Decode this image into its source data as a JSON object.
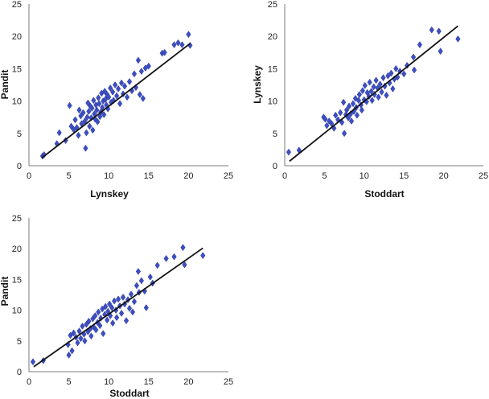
{
  "chart_data": [
    {
      "type": "scatter",
      "title": "",
      "xlabel": "Lynskey",
      "ylabel": "Pandit",
      "xlim": [
        0,
        25
      ],
      "ylim": [
        0,
        25
      ],
      "xticks": [
        "0",
        "5",
        "10",
        "15",
        "20",
        "25"
      ],
      "yticks": [
        "0",
        "5",
        "10",
        "15",
        "20",
        "25"
      ],
      "marker": "diamond",
      "point_color": "#3d4fc4",
      "line_color": "#111111",
      "trendline": {
        "x": [
          1.6,
          20.2
        ],
        "y": [
          1.2,
          18.9
        ]
      },
      "points": [
        [
          1.7,
          1.5
        ],
        [
          1.9,
          1.7
        ],
        [
          3.5,
          3.4
        ],
        [
          3.8,
          5.1
        ],
        [
          4.6,
          3.9
        ],
        [
          5.1,
          9.3
        ],
        [
          5.3,
          6.1
        ],
        [
          5.6,
          5.6
        ],
        [
          5.8,
          7.1
        ],
        [
          6.0,
          5.9
        ],
        [
          6.2,
          4.7
        ],
        [
          6.3,
          8.6
        ],
        [
          6.5,
          7.7
        ],
        [
          6.6,
          6.5
        ],
        [
          6.8,
          8.2
        ],
        [
          7.0,
          6.9
        ],
        [
          7.1,
          2.7
        ],
        [
          7.2,
          5.1
        ],
        [
          7.3,
          7.5
        ],
        [
          7.4,
          9.7
        ],
        [
          7.5,
          8.4
        ],
        [
          7.6,
          6.1
        ],
        [
          7.7,
          9.2
        ],
        [
          7.8,
          7.4
        ],
        [
          7.9,
          8.9
        ],
        [
          8.0,
          5.5
        ],
        [
          8.1,
          10.1
        ],
        [
          8.2,
          8.0
        ],
        [
          8.3,
          7.2
        ],
        [
          8.4,
          9.4
        ],
        [
          8.5,
          8.6
        ],
        [
          8.6,
          6.8
        ],
        [
          8.7,
          10.5
        ],
        [
          8.8,
          9.6
        ],
        [
          8.9,
          7.6
        ],
        [
          9.0,
          8.3
        ],
        [
          9.1,
          11.2
        ],
        [
          9.2,
          9.0
        ],
        [
          9.3,
          10.0
        ],
        [
          9.4,
          7.9
        ],
        [
          9.5,
          11.5
        ],
        [
          9.6,
          10.3
        ],
        [
          9.7,
          9.4
        ],
        [
          9.8,
          11.0
        ],
        [
          9.9,
          8.8
        ],
        [
          10.0,
          10.6
        ],
        [
          10.2,
          12.0
        ],
        [
          10.3,
          9.8
        ],
        [
          10.5,
          11.4
        ],
        [
          10.6,
          10.1
        ],
        [
          10.8,
          12.5
        ],
        [
          11.0,
          10.8
        ],
        [
          11.2,
          11.9
        ],
        [
          11.4,
          9.6
        ],
        [
          11.6,
          12.8
        ],
        [
          11.8,
          11.1
        ],
        [
          12.0,
          12.3
        ],
        [
          12.3,
          10.6
        ],
        [
          12.6,
          13.0
        ],
        [
          12.9,
          11.6
        ],
        [
          13.2,
          14.2
        ],
        [
          13.4,
          12.1
        ],
        [
          13.7,
          16.3
        ],
        [
          13.9,
          11.0
        ],
        [
          14.1,
          14.6
        ],
        [
          14.3,
          10.4
        ],
        [
          14.6,
          15.1
        ],
        [
          15.0,
          15.4
        ],
        [
          16.7,
          17.4
        ],
        [
          17.0,
          17.5
        ],
        [
          18.2,
          18.7
        ],
        [
          18.7,
          19.0
        ],
        [
          19.2,
          18.7
        ],
        [
          20.0,
          20.3
        ],
        [
          20.2,
          18.6
        ]
      ]
    },
    {
      "type": "scatter",
      "title": "",
      "xlabel": "Stoddart",
      "ylabel": "Lynskey",
      "xlim": [
        0,
        25
      ],
      "ylim": [
        0,
        25
      ],
      "xticks": [
        "0",
        "5",
        "10",
        "15",
        "20",
        "25"
      ],
      "yticks": [
        "0",
        "5",
        "10",
        "15",
        "20",
        "25"
      ],
      "marker": "diamond",
      "point_color": "#3d4fc4",
      "line_color": "#111111",
      "trendline": {
        "x": [
          0.6,
          21.8
        ],
        "y": [
          0.7,
          21.6
        ]
      },
      "points": [
        [
          0.5,
          2.1
        ],
        [
          1.8,
          2.4
        ],
        [
          4.9,
          7.5
        ],
        [
          5.1,
          7.2
        ],
        [
          5.3,
          6.2
        ],
        [
          5.6,
          6.9
        ],
        [
          5.9,
          6.5
        ],
        [
          6.2,
          5.8
        ],
        [
          6.4,
          7.8
        ],
        [
          6.7,
          7.1
        ],
        [
          7.0,
          8.2
        ],
        [
          7.2,
          6.7
        ],
        [
          7.4,
          9.8
        ],
        [
          7.5,
          5.0
        ],
        [
          7.7,
          7.9
        ],
        [
          7.8,
          8.6
        ],
        [
          8.0,
          7.4
        ],
        [
          8.1,
          9.2
        ],
        [
          8.3,
          8.0
        ],
        [
          8.4,
          6.9
        ],
        [
          8.6,
          9.6
        ],
        [
          8.7,
          8.4
        ],
        [
          8.9,
          10.4
        ],
        [
          9.0,
          9.0
        ],
        [
          9.1,
          7.8
        ],
        [
          9.3,
          10.1
        ],
        [
          9.4,
          11.0
        ],
        [
          9.6,
          9.4
        ],
        [
          9.7,
          8.6
        ],
        [
          9.8,
          11.6
        ],
        [
          10.0,
          10.2
        ],
        [
          10.1,
          12.4
        ],
        [
          10.3,
          9.9
        ],
        [
          10.4,
          11.3
        ],
        [
          10.6,
          10.7
        ],
        [
          10.7,
          12.9
        ],
        [
          10.9,
          11.5
        ],
        [
          11.0,
          10.1
        ],
        [
          11.2,
          12.2
        ],
        [
          11.3,
          11.0
        ],
        [
          11.5,
          13.2
        ],
        [
          11.7,
          12.0
        ],
        [
          11.8,
          10.6
        ],
        [
          12.0,
          12.6
        ],
        [
          12.2,
          11.4
        ],
        [
          12.4,
          13.6
        ],
        [
          12.6,
          12.3
        ],
        [
          12.8,
          10.9
        ],
        [
          13.0,
          13.9
        ],
        [
          13.2,
          12.8
        ],
        [
          13.4,
          14.3
        ],
        [
          13.6,
          11.9
        ],
        [
          13.8,
          13.4
        ],
        [
          14.0,
          15.0
        ],
        [
          14.2,
          13.7
        ],
        [
          14.5,
          14.6
        ],
        [
          15.0,
          14.2
        ],
        [
          15.4,
          15.5
        ],
        [
          16.2,
          16.8
        ],
        [
          16.3,
          14.8
        ],
        [
          17.0,
          18.7
        ],
        [
          18.5,
          21.0
        ],
        [
          19.4,
          20.8
        ],
        [
          19.6,
          17.7
        ],
        [
          21.8,
          19.6
        ]
      ]
    },
    {
      "type": "scatter",
      "title": "",
      "xlabel": "Stoddart",
      "ylabel": "Pandit",
      "xlim": [
        0,
        25
      ],
      "ylim": [
        0,
        25
      ],
      "xticks": [
        "0",
        "5",
        "10",
        "15",
        "20",
        "25"
      ],
      "yticks": [
        "0",
        "5",
        "10",
        "15",
        "20",
        "25"
      ],
      "marker": "diamond",
      "point_color": "#3d4fc4",
      "line_color": "#111111",
      "trendline": {
        "x": [
          0.6,
          21.8
        ],
        "y": [
          0.8,
          20.1
        ]
      },
      "points": [
        [
          0.5,
          1.6
        ],
        [
          1.8,
          1.8
        ],
        [
          4.9,
          4.4
        ],
        [
          5.0,
          2.7
        ],
        [
          5.2,
          5.9
        ],
        [
          5.4,
          3.4
        ],
        [
          5.6,
          6.3
        ],
        [
          5.9,
          5.6
        ],
        [
          6.1,
          4.7
        ],
        [
          6.3,
          6.6
        ],
        [
          6.5,
          5.4
        ],
        [
          6.7,
          7.4
        ],
        [
          6.9,
          6.1
        ],
        [
          7.0,
          5.0
        ],
        [
          7.2,
          7.7
        ],
        [
          7.4,
          6.5
        ],
        [
          7.5,
          8.2
        ],
        [
          7.7,
          7.0
        ],
        [
          7.8,
          5.8
        ],
        [
          8.0,
          8.6
        ],
        [
          8.1,
          7.3
        ],
        [
          8.3,
          9.1
        ],
        [
          8.4,
          6.8
        ],
        [
          8.6,
          8.0
        ],
        [
          8.7,
          9.7
        ],
        [
          8.9,
          7.5
        ],
        [
          9.0,
          8.7
        ],
        [
          9.2,
          10.2
        ],
        [
          9.3,
          6.2
        ],
        [
          9.5,
          9.3
        ],
        [
          9.6,
          10.6
        ],
        [
          9.8,
          8.4
        ],
        [
          9.9,
          9.8
        ],
        [
          10.1,
          11.0
        ],
        [
          10.2,
          9.1
        ],
        [
          10.4,
          10.4
        ],
        [
          10.5,
          7.9
        ],
        [
          10.7,
          11.5
        ],
        [
          10.9,
          10.0
        ],
        [
          11.0,
          8.8
        ],
        [
          11.2,
          11.8
        ],
        [
          11.4,
          10.7
        ],
        [
          11.6,
          9.5
        ],
        [
          11.8,
          12.1
        ],
        [
          12.0,
          11.0
        ],
        [
          12.2,
          8.3
        ],
        [
          12.4,
          11.7
        ],
        [
          12.6,
          10.3
        ],
        [
          12.8,
          12.6
        ],
        [
          13.0,
          9.7
        ],
        [
          13.2,
          11.4
        ],
        [
          13.5,
          14.0
        ],
        [
          13.7,
          16.3
        ],
        [
          13.8,
          12.9
        ],
        [
          14.1,
          14.8
        ],
        [
          14.5,
          13.1
        ],
        [
          14.7,
          10.4
        ],
        [
          15.2,
          15.4
        ],
        [
          15.5,
          14.4
        ],
        [
          16.1,
          17.3
        ],
        [
          17.2,
          18.4
        ],
        [
          18.2,
          18.7
        ],
        [
          19.3,
          20.2
        ],
        [
          19.5,
          17.4
        ],
        [
          21.8,
          18.9
        ]
      ]
    }
  ]
}
